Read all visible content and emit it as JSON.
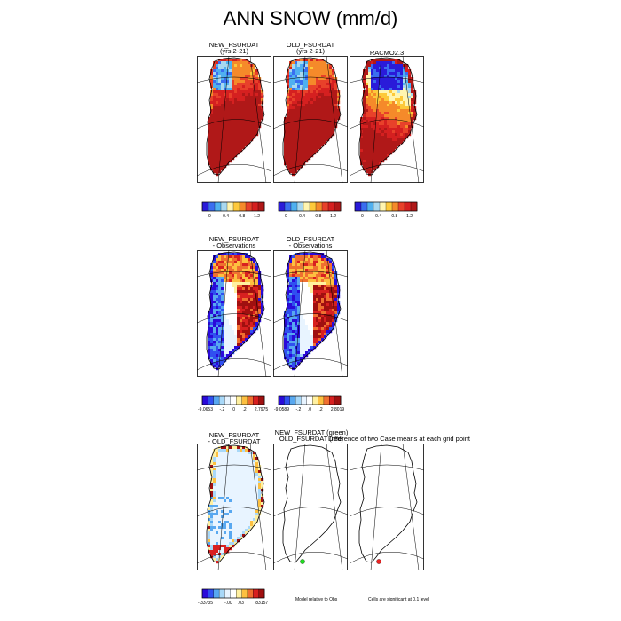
{
  "figure": {
    "title": "ANN SNOW (mm/d)"
  },
  "panels": {
    "p1": {
      "title": "NEW_FSURDAT",
      "subtitle": "(yrs 2-21)"
    },
    "p2": {
      "title": "OLD_FSURDAT",
      "subtitle": "(yrs 2-21)"
    },
    "p3": {
      "title": "RACMO2.3"
    },
    "p4": {
      "title": "NEW_FSURDAT",
      "subtitle": "- Observations"
    },
    "p5": {
      "title": "OLD_FSURDAT",
      "subtitle": "- Observations"
    },
    "p6": {
      "title": "NEW_FSURDAT",
      "subtitle": "- OLD_FSURDAT"
    },
    "p7": {
      "title": "NEW_FSURDAT (green)",
      "subtitle": "OLD_FSURDAT (red)"
    },
    "p8": {
      "title": "Difference of two Case means at each grid point"
    }
  },
  "colorbars": {
    "row1": {
      "ticks": [
        "0",
        "0.4",
        "0.8",
        "1.2"
      ]
    },
    "row2a": {
      "ticks": [
        "-9.0653",
        "-.2",
        ".0",
        ".2",
        "2.7975"
      ]
    },
    "row2b": {
      "ticks": [
        "-9.0589",
        "-.2",
        ".0",
        ".2",
        "2.8019"
      ]
    },
    "row3": {
      "ticks": [
        "-.33735",
        "-.00",
        ".03",
        ".83157"
      ]
    }
  },
  "notes": {
    "model_relative": "Model relative to Obs",
    "significance": "Cells are significant at 0.1 level"
  },
  "colors": {
    "abs_scale": [
      "#2a1bd9",
      "#3a6ef0",
      "#4fb0f0",
      "#a8d8f0",
      "#fff5b0",
      "#fdc93a",
      "#f58a2a",
      "#e8412a",
      "#d52020",
      "#b01818"
    ],
    "diff_scale": [
      "#2a0ad9",
      "#3050f0",
      "#58a8f0",
      "#a8d8f8",
      "#e8f4ff",
      "#ffffff",
      "#fff0a0",
      "#fdc040",
      "#f07030",
      "#d82020",
      "#a01010"
    ],
    "green_marker": "#22dd22",
    "red_marker": "#ee2222"
  },
  "chart_data": [
    {
      "type": "heatmap",
      "title": "NEW_FSURDAT (yrs 2-21)",
      "units": "mm/d",
      "colorbar_ticks": [
        0,
        0.4,
        0.8,
        1.2
      ]
    },
    {
      "type": "heatmap",
      "title": "OLD_FSURDAT (yrs 2-21)",
      "units": "mm/d",
      "colorbar_ticks": [
        0,
        0.4,
        0.8,
        1.2
      ]
    },
    {
      "type": "heatmap",
      "title": "RACMO2.3",
      "units": "mm/d",
      "colorbar_ticks": [
        0,
        0.4,
        0.8,
        1.2
      ]
    },
    {
      "type": "heatmap",
      "title": "NEW_FSURDAT - Observations",
      "colorbar_min": -9.0653,
      "colorbar_max": 2.7975,
      "colorbar_ticks": [
        -0.2,
        0.0,
        0.2
      ]
    },
    {
      "type": "heatmap",
      "title": "OLD_FSURDAT - Observations",
      "colorbar_min": -9.0589,
      "colorbar_max": 2.8019,
      "colorbar_ticks": [
        -0.2,
        0.0,
        0.2
      ]
    },
    {
      "type": "heatmap",
      "title": "NEW_FSURDAT - OLD_FSURDAT",
      "colorbar_min": -0.33735,
      "colorbar_max": 0.83157,
      "colorbar_ticks": [
        -0.0,
        0.03
      ]
    },
    {
      "type": "scatter",
      "title": "NEW_FSURDAT (green) OLD_FSURDAT (red)",
      "markers": [
        "green"
      ]
    },
    {
      "type": "scatter",
      "title": "Difference of two Case means at each grid point",
      "markers": [
        "red"
      ]
    }
  ]
}
